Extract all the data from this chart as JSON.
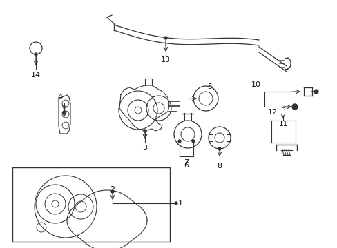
{
  "bg_color": "#ffffff",
  "line_color": "#333333",
  "text_color": "#111111",
  "fig_width": 4.89,
  "fig_height": 3.6,
  "dpi": 100
}
